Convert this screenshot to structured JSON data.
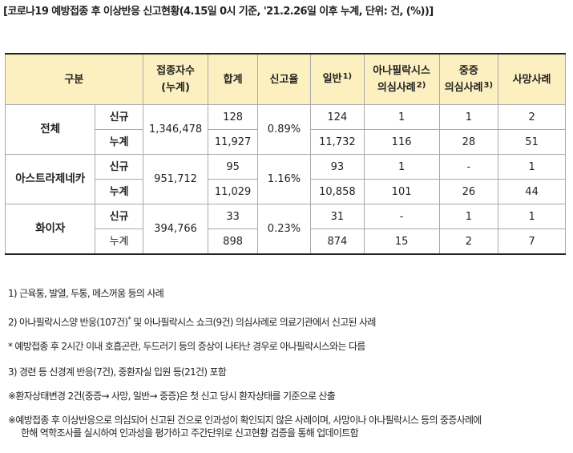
{
  "title": "[코로나19 예방접종 후 이상반응 신고현황(4.15일 0시 기준, '21.2.26일 이후 누계, 단위: 건, (%))]",
  "headers": {
    "category": "구분",
    "vaccinated_line1": "접종자수",
    "vaccinated_line2": "(누계)",
    "total": "합계",
    "report_rate": "신고율",
    "general": "일반",
    "general_mark": "1)",
    "anaphylaxis_line1": "아나필락시스",
    "anaphylaxis_line2": "의심사례",
    "anaphylaxis_mark": "2)",
    "severe_line1": "중증",
    "severe_line2": "의심사례",
    "severe_mark": "3)",
    "death": "사망사례"
  },
  "row_labels": {
    "new": "신규",
    "cumulative": "누계"
  },
  "groups": [
    {
      "name": "전체",
      "vaccinated": "1,346,478",
      "rate": "0.89%",
      "new": {
        "total": "128",
        "general": "124",
        "anaphylaxis": "1",
        "severe": "1",
        "death": "2"
      },
      "cumulative": {
        "total": "11,927",
        "general": "11,732",
        "anaphylaxis": "116",
        "severe": "28",
        "death": "51"
      }
    },
    {
      "name": "아스트라제네카",
      "vaccinated": "951,712",
      "rate": "1.16%",
      "new": {
        "total": "95",
        "general": "93",
        "anaphylaxis": "1",
        "severe": "-",
        "death": "1"
      },
      "cumulative": {
        "total": "11,029",
        "general": "10,858",
        "anaphylaxis": "101",
        "severe": "26",
        "death": "44"
      }
    },
    {
      "name": "화이자",
      "vaccinated": "394,766",
      "rate": "0.23%",
      "new": {
        "total": "33",
        "general": "31",
        "anaphylaxis": "-",
        "severe": "1",
        "death": "1"
      },
      "cumulative": {
        "total": "898",
        "general": "874",
        "anaphylaxis": "15",
        "severe": "2",
        "death": "7"
      }
    }
  ],
  "notes": {
    "n1": "1) 근육통, 발열, 두통, 메스꺼움 등의 사례",
    "n2_a": "2) 아나필락시스양 반응(107건)",
    "n2_star": "*",
    "n2_b": " 및 아나필락시스 쇼크(9건) 의심사례로 의료기관에서 신고된 사례",
    "n3": "* 예방접종 후 2시간 이내 호흡곤란, 두드러기 등의 증상이 나타난 경우로 아나필락시스와는 다름",
    "n4": "3) 경련 등 신경계 반응(7건), 중환자실 입원 등(21건) 포함",
    "n5": "※환자상태변경 2건(중증→ 사망, 일반→ 중증)은 첫 신고 당시 환자상태를 기준으로 산출",
    "n6_line1": "※예방접종 후 이상반응으로 의심되어 신고된 건으로 인과성이 확인되지 않은 사례이며, 사망이나 아나필락시스 등의 중증사례에",
    "n6_line2": "한해 역학조사를 실시하여 인과성을 평가하고 주간단위로 신고현황 검증을 통해 업데이트함"
  }
}
